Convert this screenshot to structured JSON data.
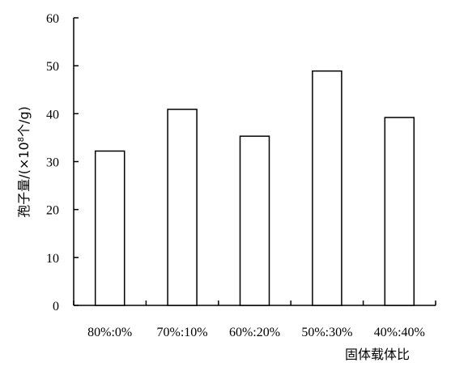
{
  "chart_data": {
    "type": "bar",
    "categories": [
      "80%:0%",
      "70%:10%",
      "60%:20%",
      "50%:30%",
      "40%:40%"
    ],
    "values": [
      32.2,
      40.9,
      35.3,
      48.9,
      39.2
    ],
    "xlabel": "固体载体比",
    "ylabel_prefix": "孢子量/(×10",
    "ylabel_sup": "8",
    "ylabel_suffix": "个/g)",
    "ylim": [
      0,
      60
    ],
    "yticks": [
      0,
      10,
      20,
      30,
      40,
      50,
      60
    ],
    "grid": false,
    "bar_fill": "#ffffff",
    "bar_stroke": "#000000"
  }
}
